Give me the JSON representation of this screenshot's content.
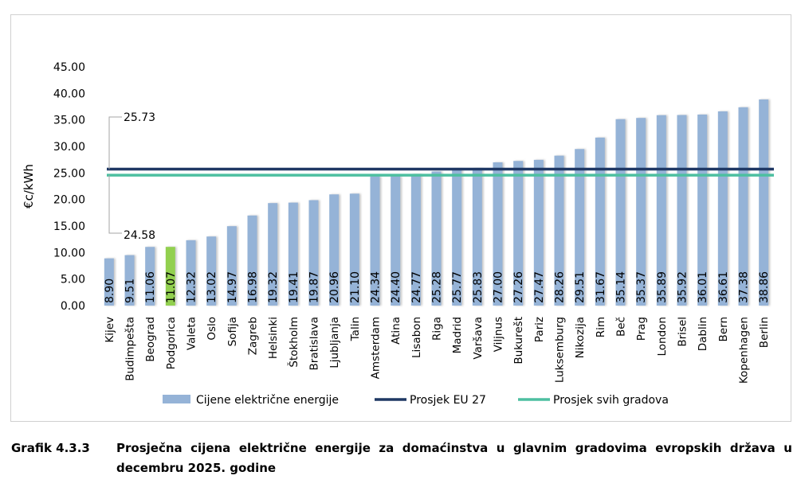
{
  "chart_data": {
    "type": "bar",
    "ylabel": "€c/kWh",
    "ylim": [
      0,
      45
    ],
    "yticks": [
      "0.00",
      "5.00",
      "10.00",
      "15.00",
      "20.00",
      "25.00",
      "30.00",
      "35.00",
      "40.00",
      "45.00"
    ],
    "categories": [
      "Kijev",
      "Budimpešta",
      "Beograd",
      "Podgorica",
      "Valeta",
      "Oslo",
      "Sofija",
      "Zagreb",
      "Helsinki",
      "Štokholm",
      "Bratislava",
      "Ljubljanja",
      "Talin",
      "Amsterdam",
      "Atina",
      "Lisabon",
      "Riga",
      "Madrid",
      "Varšava",
      "Viljnus",
      "Bukurešt",
      "Pariz",
      "Luksemburg",
      "Nikozija",
      "Rim",
      "Beč",
      "Prag",
      "London",
      "Brisel",
      "Dablin",
      "Bern",
      "Kopenhagen",
      "Berlin"
    ],
    "series": [
      {
        "name": "Cijene električne energije",
        "values": [
          8.9,
          9.51,
          11.06,
          11.07,
          12.32,
          13.02,
          14.97,
          16.98,
          19.32,
          19.41,
          19.87,
          20.96,
          21.1,
          24.34,
          24.4,
          24.77,
          25.28,
          25.77,
          25.83,
          27.0,
          27.26,
          27.47,
          28.26,
          29.51,
          31.67,
          35.14,
          35.37,
          35.89,
          35.92,
          36.01,
          36.61,
          37.38,
          38.86
        ],
        "labels": [
          "8.90",
          "9.51",
          "11.06",
          "11.07",
          "12.32",
          "13.02",
          "14.97",
          "16.98",
          "19.32",
          "19.41",
          "19.87",
          "20.96",
          "21.10",
          "24.34",
          "24.40",
          "24.77",
          "25.28",
          "25.77",
          "25.83",
          "27.00",
          "27.26",
          "27.47",
          "28.26",
          "29.51",
          "31.67",
          "35.14",
          "35.37",
          "35.89",
          "35.92",
          "36.01",
          "36.61",
          "37.38",
          "38.86"
        ],
        "color": "#95b3d7",
        "highlight_color": "#92d050",
        "highlight_category": "Podgorica"
      }
    ],
    "reference_lines": [
      {
        "name": "Prosjek EU 27",
        "value": 25.73,
        "label": "25.73",
        "color": "#1f3864"
      },
      {
        "name": "Prosjek svih gradova",
        "value": 24.58,
        "label": "24.58",
        "color": "#4dbfa0"
      }
    ],
    "grid": false,
    "legend": "bottom"
  },
  "caption": {
    "number": "Grafik 4.3.3",
    "text": "Prosječna cijena električne energije za domaćinstva u glavnim gradovima evropskih država u decembru 2025. godine"
  }
}
